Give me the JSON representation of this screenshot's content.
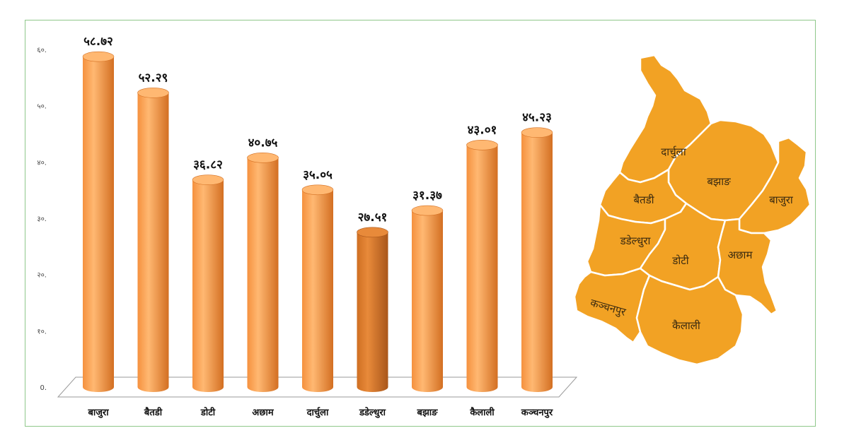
{
  "chart_data": {
    "type": "bar",
    "categories": [
      "बाजुरा",
      "बैतडी",
      "डोटी",
      "अछाम",
      "दार्चुला",
      "डडेल्धुरा",
      "बझाङ",
      "कैलाली",
      "कञ्चनपुर"
    ],
    "values": [
      58.72,
      52.29,
      36.82,
      40.75,
      35.05,
      27.51,
      31.37,
      43.01,
      45.23
    ],
    "data_labels": [
      "५८.७२",
      "५२.२९",
      "३६.८२",
      "४०.७५",
      "३५.०५",
      "२७.५१",
      "३१.३७",
      "४३.०१",
      "४५.२३"
    ],
    "y_ticks": [
      0,
      10,
      20,
      30,
      40,
      50,
      60
    ],
    "y_tick_labels": [
      "0.",
      "१०.",
      "२०.",
      "३०.",
      "४०.",
      "५०.",
      "६०."
    ],
    "ylim": [
      0,
      60
    ],
    "grid": false,
    "highlight_index": 5,
    "colors": {
      "bar": "#f5913e",
      "bar_light": "#ffb872",
      "bar_dark": "#d36f22",
      "highlight": "#cf6f22",
      "highlight_light": "#e88a3a",
      "highlight_dark": "#a9561a"
    }
  },
  "map": {
    "districts": [
      "दार्चुला",
      "बझाङ",
      "बाजुरा",
      "बैतडी",
      "डडेल्धुरा",
      "डोटी",
      "अछाम",
      "कञ्चनपुर",
      "कैलाली"
    ],
    "fill": "#f2a224",
    "border": "#ffffff"
  }
}
